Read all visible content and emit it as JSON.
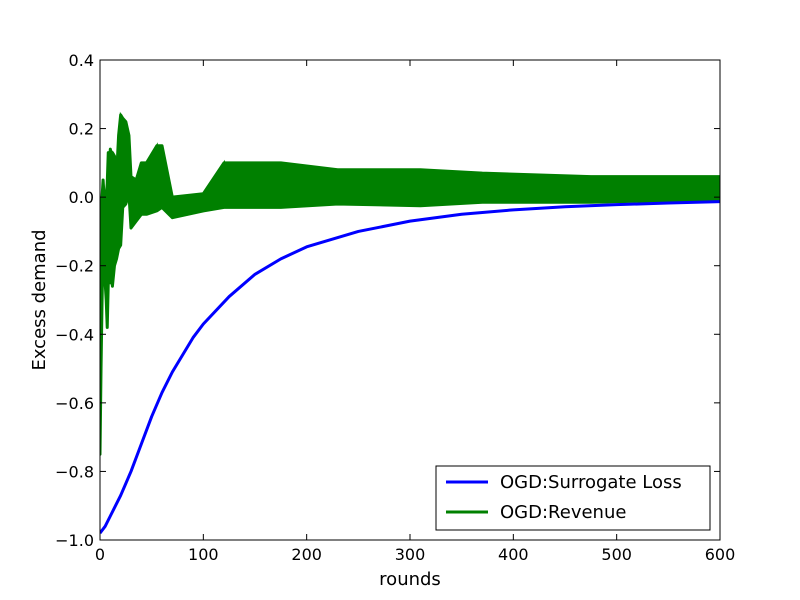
{
  "chart_data": {
    "type": "line",
    "title": "",
    "xlabel": "rounds",
    "ylabel": "Excess demand",
    "xlim": [
      0,
      600
    ],
    "ylim": [
      -1.0,
      0.4
    ],
    "xticks": [
      0,
      100,
      200,
      300,
      400,
      500,
      600
    ],
    "yticks": [
      -1.0,
      -0.8,
      -0.6,
      -0.4,
      -0.2,
      0.0,
      0.2,
      0.4
    ],
    "xtick_labels": [
      "0",
      "100",
      "200",
      "300",
      "400",
      "500",
      "600"
    ],
    "ytick_labels": [
      "−1.0",
      "−0.8",
      "−0.6",
      "−0.4",
      "−0.2",
      "0.0",
      "0.2",
      "0.4"
    ],
    "grid": false,
    "legend_position": "lower-right",
    "series": [
      {
        "name": "OGD:Surrogate Loss",
        "color": "#0000ff",
        "style": "line",
        "x": [
          0,
          5,
          10,
          15,
          20,
          30,
          40,
          50,
          60,
          70,
          80,
          90,
          100,
          125,
          150,
          175,
          200,
          250,
          300,
          350,
          400,
          450,
          500,
          550,
          600
        ],
        "y": [
          -0.98,
          -0.96,
          -0.93,
          -0.9,
          -0.87,
          -0.8,
          -0.72,
          -0.64,
          -0.57,
          -0.51,
          -0.46,
          -0.41,
          -0.37,
          -0.29,
          -0.225,
          -0.18,
          -0.145,
          -0.1,
          -0.07,
          -0.05,
          -0.037,
          -0.028,
          -0.022,
          -0.017,
          -0.013
        ]
      },
      {
        "name": "OGD:Revenue",
        "color": "#008000",
        "style": "oscillating-band",
        "x": [
          0,
          1,
          2,
          3,
          4,
          5,
          6,
          7,
          8,
          9,
          10,
          11,
          12,
          14,
          16,
          18,
          20,
          22,
          25,
          28,
          30,
          35,
          40,
          45,
          55,
          60,
          70,
          100,
          120,
          175,
          230,
          310,
          370,
          475,
          550,
          600
        ],
        "lower": [
          -0.75,
          -0.5,
          -0.3,
          -0.15,
          -0.1,
          -0.25,
          -0.3,
          -0.38,
          -0.25,
          -0.2,
          -0.25,
          -0.22,
          -0.26,
          -0.2,
          -0.18,
          -0.15,
          -0.14,
          -0.03,
          -0.02,
          0.01,
          -0.09,
          -0.07,
          -0.05,
          -0.05,
          -0.04,
          -0.03,
          -0.06,
          -0.04,
          -0.03,
          -0.03,
          -0.02,
          -0.025,
          -0.015,
          -0.015,
          -0.01,
          -0.01
        ],
        "upper": [
          -0.2,
          -0.05,
          0.0,
          0.05,
          0.0,
          -0.02,
          0.0,
          0.04,
          0.13,
          0.1,
          0.14,
          0.12,
          0.13,
          0.12,
          0.06,
          0.18,
          0.24,
          0.23,
          0.22,
          0.18,
          0.06,
          0.05,
          0.1,
          0.1,
          0.15,
          0.15,
          0.0,
          0.01,
          0.1,
          0.1,
          0.08,
          0.08,
          0.07,
          0.06,
          0.06,
          0.06
        ]
      }
    ]
  }
}
